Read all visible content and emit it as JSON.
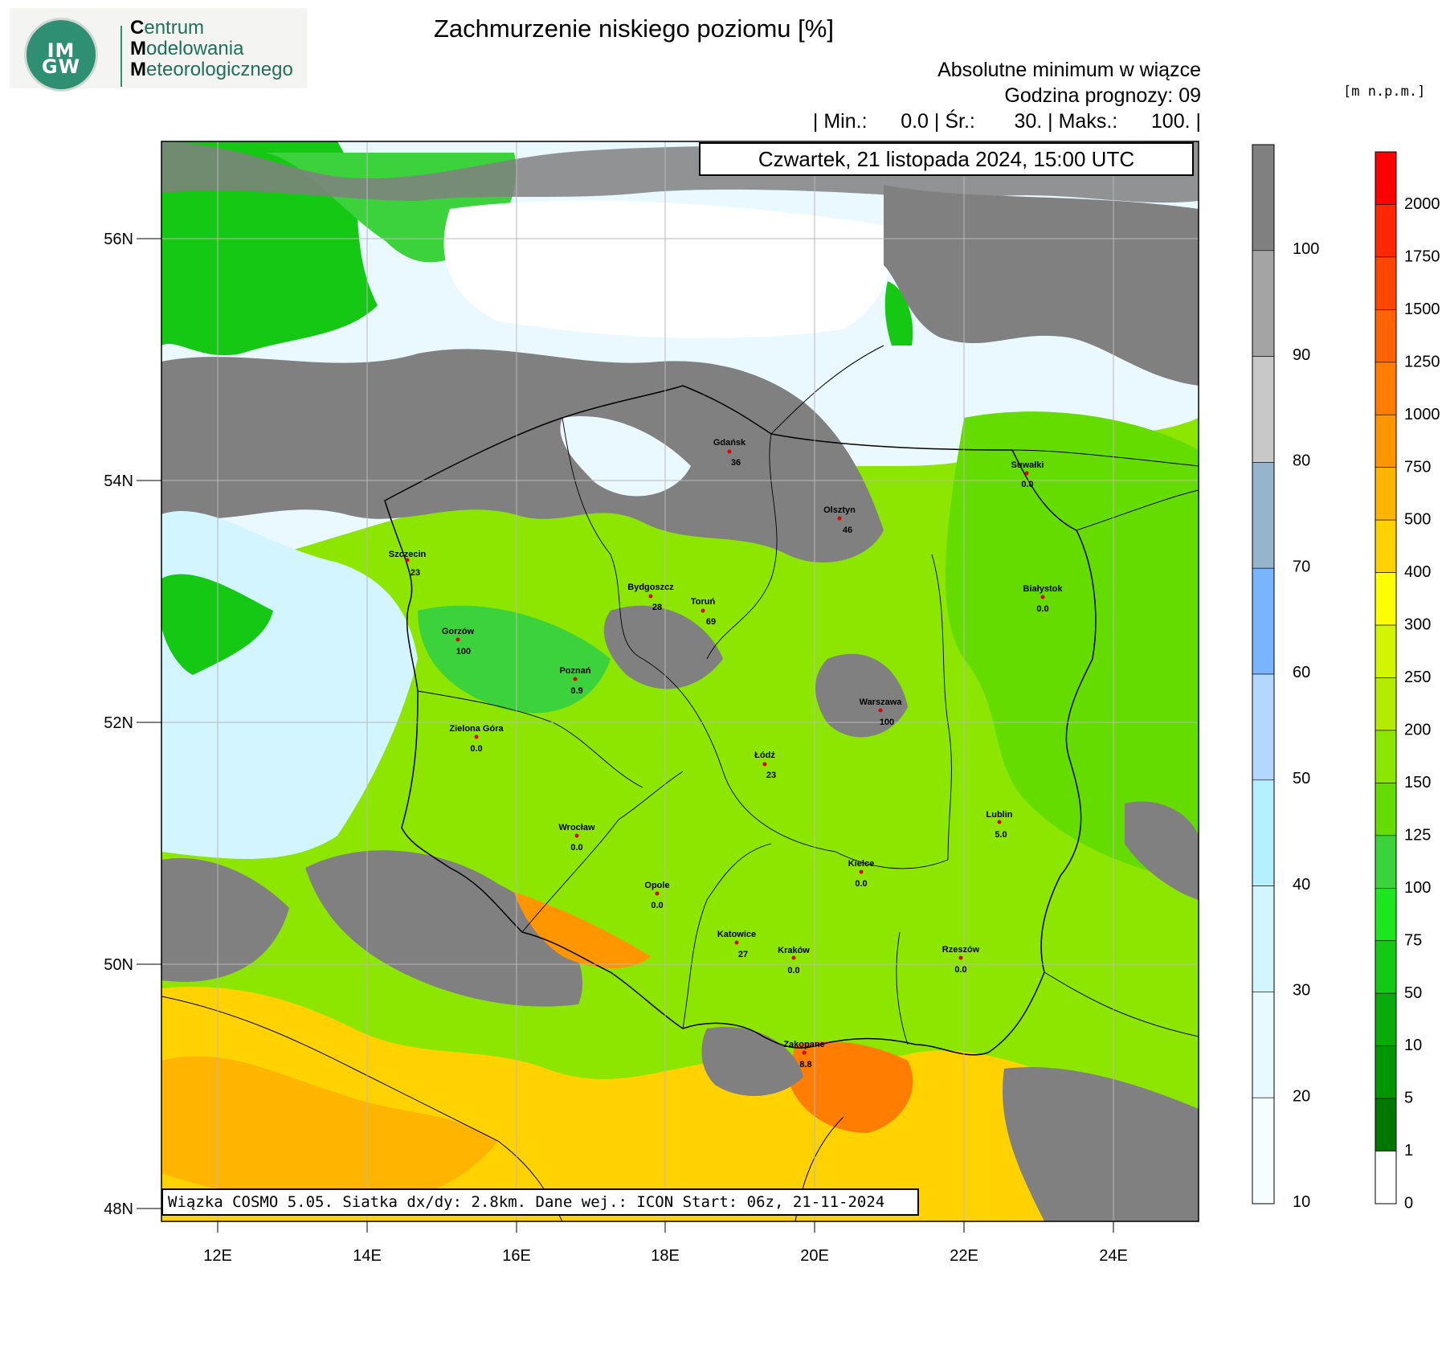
{
  "logo": {
    "seal_text": "IM\nGW",
    "org_line1_initial": "C",
    "org_line1_rest": "entrum",
    "org_line2_initial": "M",
    "org_line2_rest": "odelowania",
    "org_line3_initial": "M",
    "org_line3_rest": "eteorologicznego"
  },
  "title": "Zachmurzenie niskiego poziomu [%]",
  "subtitle": {
    "line1": "Absolutne minimum w wiązce",
    "line2": "Godzina prognozy: 09",
    "line3": "| Min.:      0.0 | Śr.:       30. | Maks.:      100. |"
  },
  "date_label": "Czwartek, 21 listopada 2024, 15:00 UTC",
  "footer_label": "Wiązka COSMO 5.05. Siatka dx/dy: 2.8km. Dane wej.: ICON Start: 06z, 21-11-2024",
  "map": {
    "lat_ticks": [
      "56N",
      "54N",
      "52N",
      "50N",
      "48N"
    ],
    "lon_ticks": [
      "12E",
      "14E",
      "16E",
      "18E",
      "20E",
      "22E",
      "24E"
    ]
  },
  "cities": [
    {
      "name": "Gdańsk",
      "value": "36"
    },
    {
      "name": "Suwałki",
      "value": "0.0"
    },
    {
      "name": "Olsztyn",
      "value": "46"
    },
    {
      "name": "Szczecin",
      "value": "23"
    },
    {
      "name": "Bydgoszcz",
      "value": "28"
    },
    {
      "name": "Toruń",
      "value": "69"
    },
    {
      "name": "Białystok",
      "value": "0.0"
    },
    {
      "name": "Gorzów",
      "value": "100"
    },
    {
      "name": "Poznań",
      "value": "0.9"
    },
    {
      "name": "Warszawa",
      "value": "100"
    },
    {
      "name": "Zielona Góra",
      "value": "0.0"
    },
    {
      "name": "Łódź",
      "value": "23"
    },
    {
      "name": "Wrocław",
      "value": "0.0"
    },
    {
      "name": "Lublin",
      "value": "5.0"
    },
    {
      "name": "Kielce",
      "value": "0.0"
    },
    {
      "name": "Opole",
      "value": "0.0"
    },
    {
      "name": "Katowice",
      "value": "27"
    },
    {
      "name": "Kraków",
      "value": "0.0"
    },
    {
      "name": "Rzeszów",
      "value": "0.0"
    },
    {
      "name": "Zakopane",
      "value": "8.8"
    }
  ],
  "cloud_scale": {
    "labels": [
      "100",
      "90",
      "80",
      "70",
      "60",
      "50",
      "40",
      "30",
      "20",
      "10"
    ],
    "colors": [
      "#808080",
      "#a4a4a4",
      "#c8c8c8",
      "#96b4cc",
      "#78b4ff",
      "#b4d7ff",
      "#b4f0ff",
      "#d2f5ff",
      "#e6faff",
      "#f5fdff"
    ]
  },
  "terrain_scale": {
    "unit": "[m n.p.m.]",
    "labels": [
      "2000",
      "1750",
      "1500",
      "1250",
      "1000",
      "750",
      "500",
      "400",
      "300",
      "250",
      "200",
      "150",
      "125",
      "100",
      "75",
      "50",
      "10",
      "5",
      "1",
      "0"
    ],
    "colors": [
      "#ff0000",
      "#ff2800",
      "#ff4600",
      "#ff6400",
      "#ff7d00",
      "#ff9600",
      "#ffb400",
      "#ffd200",
      "#ffff00",
      "#d2f500",
      "#b4eb00",
      "#8ce600",
      "#64dc00",
      "#3cd23c",
      "#1ee61e",
      "#14c814",
      "#0aaa0a",
      "#009600",
      "#007800",
      "#ffffff"
    ]
  }
}
